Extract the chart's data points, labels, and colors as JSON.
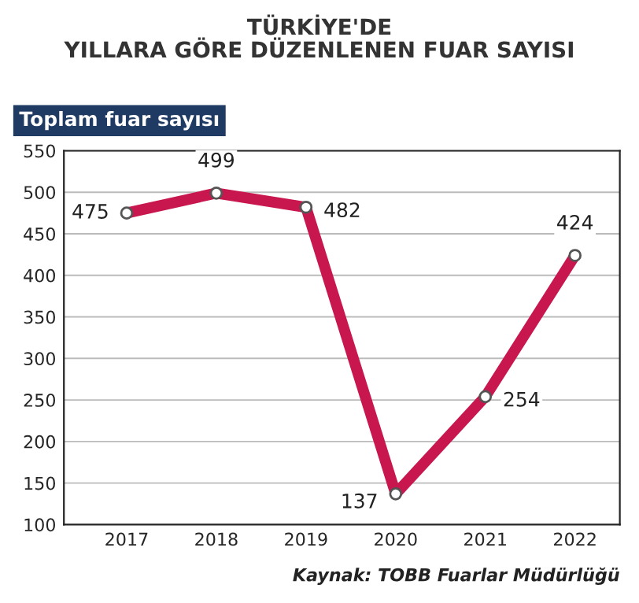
{
  "chart_data": {
    "type": "line",
    "title": "TÜRKİYE'DE\nYILLARA GÖRE DÜZENLENEN FUAR SAYISI",
    "ylabel": "Toplam fuar sayısı",
    "categories": [
      "2017",
      "2018",
      "2019",
      "2020",
      "2021",
      "2022"
    ],
    "series": [
      {
        "color": "#c8174f",
        "values": [
          475,
          499,
          482,
          137,
          254,
          424
        ]
      }
    ],
    "ylim": [
      100,
      550
    ],
    "yticks": [
      100,
      150,
      200,
      250,
      300,
      350,
      400,
      450,
      500,
      550
    ],
    "grid": "y",
    "marker": "circle",
    "line_style": "solid",
    "data_labels": true,
    "legend": false,
    "annotations": [
      "Kaynak: TOBB Fuarlar Müdürlüğü"
    ]
  }
}
